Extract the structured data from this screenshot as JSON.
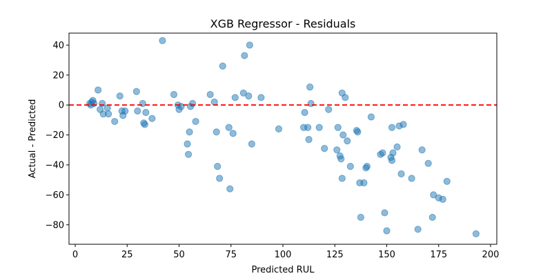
{
  "chart_data": {
    "type": "scatter",
    "title": "XGB Regressor - Residuals",
    "xlabel": "Predicted RUL",
    "ylabel": "Actual - Predicted",
    "xlim": [
      -3,
      203
    ],
    "ylim": [
      -93,
      48
    ],
    "xticks": [
      0,
      25,
      50,
      75,
      100,
      125,
      150,
      175,
      200
    ],
    "yticks": [
      -80,
      -60,
      -40,
      -20,
      0,
      20,
      40
    ],
    "grid": false,
    "colors": {
      "points": "#1f77b4",
      "reference_line": "#ff0000"
    },
    "reference_line": {
      "y": 0,
      "style": "dashed"
    },
    "points": [
      [
        7,
        1
      ],
      [
        7.5,
        0
      ],
      [
        8,
        2
      ],
      [
        8.5,
        3
      ],
      [
        9,
        1
      ],
      [
        11,
        10
      ],
      [
        12,
        -3
      ],
      [
        13,
        1
      ],
      [
        13.5,
        -6
      ],
      [
        15.5,
        -2
      ],
      [
        16,
        -6
      ],
      [
        19,
        -11
      ],
      [
        21.5,
        6
      ],
      [
        22.5,
        -4
      ],
      [
        23,
        -7
      ],
      [
        24,
        -4
      ],
      [
        29.5,
        9
      ],
      [
        30,
        -4
      ],
      [
        32.5,
        1
      ],
      [
        33,
        -12
      ],
      [
        33.5,
        -13
      ],
      [
        34,
        -5
      ],
      [
        37,
        -9
      ],
      [
        42,
        43
      ],
      [
        47.5,
        7
      ],
      [
        49.5,
        0
      ],
      [
        50,
        -3
      ],
      [
        51,
        -1
      ],
      [
        54,
        -26
      ],
      [
        54.5,
        -33
      ],
      [
        55,
        -18
      ],
      [
        55.5,
        -1
      ],
      [
        56.5,
        1
      ],
      [
        58,
        -11
      ],
      [
        65,
        7
      ],
      [
        67,
        2
      ],
      [
        68,
        -18
      ],
      [
        68.5,
        -41
      ],
      [
        69.5,
        -49
      ],
      [
        71,
        26
      ],
      [
        74,
        -15
      ],
      [
        74.5,
        -56
      ],
      [
        76,
        -19
      ],
      [
        77,
        5
      ],
      [
        81,
        8
      ],
      [
        81.5,
        33
      ],
      [
        83.5,
        6
      ],
      [
        84,
        40
      ],
      [
        85,
        -26
      ],
      [
        89.5,
        5
      ],
      [
        98,
        -16
      ],
      [
        110,
        -15
      ],
      [
        110.5,
        -5
      ],
      [
        112,
        -15
      ],
      [
        112.5,
        -23
      ],
      [
        113,
        12
      ],
      [
        113.5,
        1
      ],
      [
        117.5,
        -15
      ],
      [
        120,
        -29
      ],
      [
        122,
        -3
      ],
      [
        126,
        -30
      ],
      [
        126.5,
        -15
      ],
      [
        127.5,
        -34
      ],
      [
        128,
        -36
      ],
      [
        128.5,
        -49
      ],
      [
        128.5,
        8
      ],
      [
        129,
        -20
      ],
      [
        130,
        5
      ],
      [
        131,
        -24
      ],
      [
        132.5,
        -41
      ],
      [
        135.5,
        -17
      ],
      [
        136,
        -18
      ],
      [
        137,
        -52
      ],
      [
        137.5,
        -75
      ],
      [
        139,
        -52
      ],
      [
        140,
        -42
      ],
      [
        140.5,
        -41
      ],
      [
        142.5,
        -8
      ],
      [
        147,
        -33
      ],
      [
        148,
        -32
      ],
      [
        149,
        -72
      ],
      [
        150,
        -84
      ],
      [
        152,
        -35
      ],
      [
        152.5,
        -37
      ],
      [
        152.5,
        -15
      ],
      [
        153,
        -32
      ],
      [
        155,
        -28
      ],
      [
        156,
        -14
      ],
      [
        157,
        -46
      ],
      [
        158,
        -13
      ],
      [
        162,
        -49
      ],
      [
        165,
        -83
      ],
      [
        167,
        -30
      ],
      [
        170,
        -39
      ],
      [
        172,
        -75
      ],
      [
        172.5,
        -60
      ],
      [
        175,
        -62
      ],
      [
        177,
        -63
      ],
      [
        179,
        -51
      ],
      [
        193,
        -86
      ]
    ]
  }
}
